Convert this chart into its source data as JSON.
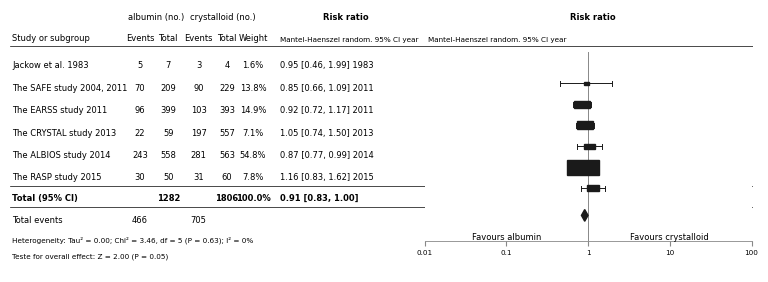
{
  "studies": [
    {
      "name": "Jackow et al. 1983",
      "alb_e": 5,
      "alb_n": 7,
      "cry_e": 3,
      "cry_n": 4,
      "weight": "1.6%",
      "rr_text": "0.95 [0.46, 1.99] 1983",
      "rr": 0.95,
      "ci_lo": 0.46,
      "ci_hi": 1.99,
      "weight_val": 1.6
    },
    {
      "name": "The SAFE study 2004, 2011",
      "alb_e": 70,
      "alb_n": 209,
      "cry_e": 90,
      "cry_n": 229,
      "weight": "13.8%",
      "rr_text": "0.85 [0.66, 1.09] 2011",
      "rr": 0.85,
      "ci_lo": 0.66,
      "ci_hi": 1.09,
      "weight_val": 13.8
    },
    {
      "name": "The EARSS study 2011",
      "alb_e": 96,
      "alb_n": 399,
      "cry_e": 103,
      "cry_n": 393,
      "weight": "14.9%",
      "rr_text": "0.92 [0.72, 1.17] 2011",
      "rr": 0.92,
      "ci_lo": 0.72,
      "ci_hi": 1.17,
      "weight_val": 14.9
    },
    {
      "name": "The CRYSTAL study 2013",
      "alb_e": 22,
      "alb_n": 59,
      "cry_e": 197,
      "cry_n": 557,
      "weight": "7.1%",
      "rr_text": "1.05 [0.74, 1.50] 2013",
      "rr": 1.05,
      "ci_lo": 0.74,
      "ci_hi": 1.5,
      "weight_val": 7.1
    },
    {
      "name": "The ALBIOS study 2014",
      "alb_e": 243,
      "alb_n": 558,
      "cry_e": 281,
      "cry_n": 563,
      "weight": "54.8%",
      "rr_text": "0.87 [0.77, 0.99] 2014",
      "rr": 0.87,
      "ci_lo": 0.77,
      "ci_hi": 0.99,
      "weight_val": 54.8
    },
    {
      "name": "The RASP study 2015",
      "alb_e": 30,
      "alb_n": 50,
      "cry_e": 31,
      "cry_n": 60,
      "weight": "7.8%",
      "rr_text": "1.16 [0.83, 1.62] 2015",
      "rr": 1.16,
      "ci_lo": 0.83,
      "ci_hi": 1.62,
      "weight_val": 7.8
    }
  ],
  "total": {
    "name": "Total (95% CI)",
    "alb_n": 1282,
    "cry_n": 1806,
    "alb_e": 466,
    "cry_e": 705,
    "weight": "100.0%",
    "rr_text": "0.91 [0.83, 1.00]",
    "rr": 0.91,
    "ci_lo": 0.83,
    "ci_hi": 1.0
  },
  "heterogeneity_text": "Heterogeneity: Tau² = 0.00; Chi² = 3.46, df = 5 (P = 0.63); I² = 0%",
  "test_text": "Teste for overall effect: Z = 2.00 (P = 0.05)",
  "xmin": 0.01,
  "xmax": 100,
  "xticks": [
    0.01,
    0.1,
    1,
    10,
    100
  ],
  "xticklabels": [
    "0.01",
    "0.1",
    "1",
    "10",
    "100"
  ],
  "favours_left": "Favours albumin",
  "favours_right": "Favours crystalloid",
  "text_color": "#000000",
  "marker_color": "#1a1a1a",
  "line_color": "#888888"
}
